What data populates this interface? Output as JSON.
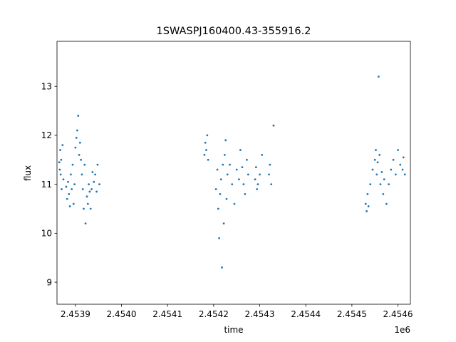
{
  "chart_data": {
    "type": "scatter",
    "title": "1SWASPJ160400.43-355916.2",
    "xlabel": "time",
    "ylabel": "flux",
    "x_offset_label": "1e6",
    "x_scale_factor": 1000000,
    "x_ticks": [
      {
        "value": 2453900,
        "label": "2.4539"
      },
      {
        "value": 2454000,
        "label": "2.4540"
      },
      {
        "value": 2454100,
        "label": "2.4541"
      },
      {
        "value": 2454200,
        "label": "2.4542"
      },
      {
        "value": 2454300,
        "label": "2.4543"
      },
      {
        "value": 2454400,
        "label": "2.4544"
      },
      {
        "value": 2454500,
        "label": "2.4545"
      },
      {
        "value": 2454600,
        "label": "2.4546"
      }
    ],
    "y_ticks": [
      {
        "value": 9,
        "label": "9"
      },
      {
        "value": 10,
        "label": "10"
      },
      {
        "value": 11,
        "label": "11"
      },
      {
        "value": 12,
        "label": "12"
      },
      {
        "value": 13,
        "label": "13"
      }
    ],
    "xlim": [
      2453860,
      2454627
    ],
    "ylim": [
      8.55,
      13.92
    ],
    "grid": false,
    "marker_color": "#1f77b4",
    "series": [
      {
        "points": [
          [
            2453865,
            11.45
          ],
          [
            2453866,
            11.3
          ],
          [
            2453867,
            11.7
          ],
          [
            2453868,
            11.2
          ],
          [
            2453869,
            11.5
          ],
          [
            2453870,
            10.9
          ],
          [
            2453872,
            11.8
          ],
          [
            2453874,
            11.1
          ],
          [
            2453880,
            10.95
          ],
          [
            2453882,
            10.7
          ],
          [
            2453884,
            11.05
          ],
          [
            2453886,
            10.8
          ],
          [
            2453888,
            10.55
          ],
          [
            2453890,
            11.2
          ],
          [
            2453892,
            10.9
          ],
          [
            2453894,
            11.4
          ],
          [
            2453896,
            10.6
          ],
          [
            2453898,
            11.0
          ],
          [
            2453900,
            11.75
          ],
          [
            2453902,
            11.95
          ],
          [
            2453904,
            12.1
          ],
          [
            2453906,
            12.4
          ],
          [
            2453908,
            11.6
          ],
          [
            2453910,
            11.85
          ],
          [
            2453912,
            11.5
          ],
          [
            2453914,
            11.2
          ],
          [
            2453916,
            10.9
          ],
          [
            2453918,
            10.5
          ],
          [
            2453920,
            11.4
          ],
          [
            2453922,
            10.2
          ],
          [
            2453925,
            10.75
          ],
          [
            2453927,
            10.6
          ],
          [
            2453929,
            11.0
          ],
          [
            2453931,
            10.85
          ],
          [
            2453933,
            10.5
          ],
          [
            2453935,
            10.9
          ],
          [
            2453937,
            11.25
          ],
          [
            2453940,
            11.05
          ],
          [
            2453943,
            11.2
          ],
          [
            2453946,
            10.85
          ],
          [
            2453948,
            11.4
          ],
          [
            2453952,
            11.0
          ],
          [
            2454180,
            11.6
          ],
          [
            2454182,
            11.85
          ],
          [
            2454184,
            11.7
          ],
          [
            2454186,
            12.0
          ],
          [
            2454188,
            11.5
          ],
          [
            2454205,
            10.9
          ],
          [
            2454208,
            11.3
          ],
          [
            2454210,
            10.5
          ],
          [
            2454212,
            9.9
          ],
          [
            2454214,
            10.8
          ],
          [
            2454216,
            11.1
          ],
          [
            2454218,
            9.3
          ],
          [
            2454220,
            11.4
          ],
          [
            2454222,
            10.2
          ],
          [
            2454224,
            11.6
          ],
          [
            2454226,
            11.9
          ],
          [
            2454228,
            10.7
          ],
          [
            2454230,
            11.2
          ],
          [
            2454235,
            11.4
          ],
          [
            2454240,
            11.0
          ],
          [
            2454245,
            10.6
          ],
          [
            2454250,
            11.3
          ],
          [
            2454255,
            11.1
          ],
          [
            2454258,
            11.7
          ],
          [
            2454262,
            11.35
          ],
          [
            2454265,
            11.0
          ],
          [
            2454268,
            10.8
          ],
          [
            2454272,
            11.5
          ],
          [
            2454275,
            11.2
          ],
          [
            2454290,
            11.1
          ],
          [
            2454292,
            11.35
          ],
          [
            2454294,
            10.9
          ],
          [
            2454296,
            11.0
          ],
          [
            2454300,
            11.2
          ],
          [
            2454305,
            11.6
          ],
          [
            2454320,
            11.2
          ],
          [
            2454322,
            11.4
          ],
          [
            2454325,
            11.0
          ],
          [
            2454330,
            12.2
          ],
          [
            2454530,
            10.6
          ],
          [
            2454532,
            10.45
          ],
          [
            2454534,
            10.8
          ],
          [
            2454536,
            10.55
          ],
          [
            2454540,
            11.0
          ],
          [
            2454545,
            11.3
          ],
          [
            2454550,
            11.5
          ],
          [
            2454552,
            11.7
          ],
          [
            2454554,
            11.2
          ],
          [
            2454556,
            11.45
          ],
          [
            2454558,
            13.2
          ],
          [
            2454560,
            11.6
          ],
          [
            2454562,
            11.0
          ],
          [
            2454565,
            11.25
          ],
          [
            2454568,
            10.8
          ],
          [
            2454570,
            11.1
          ],
          [
            2454575,
            10.6
          ],
          [
            2454580,
            11.0
          ],
          [
            2454585,
            11.3
          ],
          [
            2454590,
            11.5
          ],
          [
            2454595,
            11.2
          ],
          [
            2454600,
            11.7
          ],
          [
            2454605,
            11.4
          ],
          [
            2454610,
            11.3
          ],
          [
            2454612,
            11.55
          ],
          [
            2454615,
            11.2
          ]
        ]
      }
    ]
  }
}
